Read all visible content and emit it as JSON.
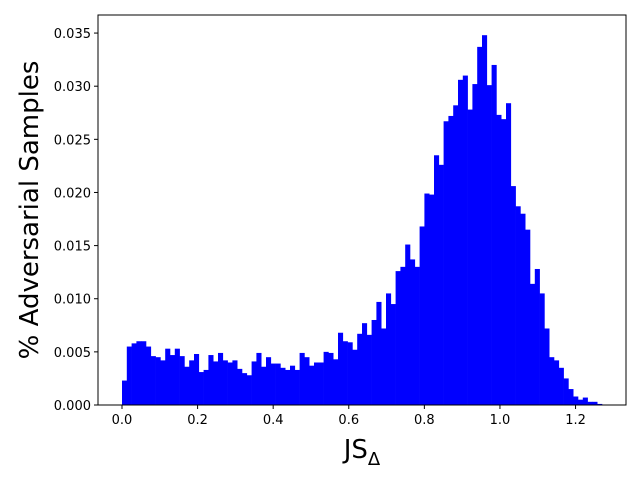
{
  "chart_data": {
    "type": "histogram",
    "x_label": "JS",
    "x_label_subscript": "Δ",
    "y_label": "% Adversarial Samples",
    "color": "#0000ff",
    "bins": [
      0,
      0.0127,
      0.0254,
      0.0381,
      0.0508,
      0.0635,
      0.0762,
      0.0889,
      0.1016,
      0.1143,
      0.127,
      0.1397,
      0.1524,
      0.1651,
      0.1778,
      0.1905,
      0.2032,
      0.2159,
      0.2286,
      0.2413,
      0.254,
      0.2667,
      0.2794,
      0.2921,
      0.3048,
      0.3175,
      0.3302,
      0.3429,
      0.3556,
      0.3683,
      0.381,
      0.3937,
      0.4064,
      0.4191,
      0.4318,
      0.4445,
      0.4572,
      0.4699,
      0.4826,
      0.4953,
      0.508,
      0.5207,
      0.5334,
      0.5461,
      0.5588,
      0.5715,
      0.5842,
      0.5969,
      0.6096,
      0.6223,
      0.635,
      0.6477,
      0.6604,
      0.6731,
      0.6858,
      0.6985,
      0.7112,
      0.7239,
      0.7366,
      0.7493,
      0.762,
      0.7747,
      0.7874,
      0.8001,
      0.8128,
      0.8255,
      0.8382,
      0.8509,
      0.8636,
      0.8763,
      0.889,
      0.9017,
      0.9144,
      0.9271,
      0.9398,
      0.9525,
      0.9652,
      0.9779,
      0.9906,
      1.0033,
      1.016,
      1.0287,
      1.0414,
      1.0541,
      1.0668,
      1.0795,
      1.0922,
      1.1049,
      1.1176,
      1.1303,
      1.143,
      1.1557,
      1.1684,
      1.1811,
      1.1938,
      1.2065,
      1.2192,
      1.2319,
      1.2446,
      1.2573,
      1.27
    ],
    "values": [
      0.0023,
      0.0055,
      0.0058,
      0.006,
      0.006,
      0.0055,
      0.0046,
      0.0045,
      0.0042,
      0.0053,
      0.0047,
      0.0053,
      0.0046,
      0.0036,
      0.0042,
      0.0048,
      0.0031,
      0.0033,
      0.0047,
      0.0041,
      0.0049,
      0.0042,
      0.004,
      0.0042,
      0.0034,
      0.003,
      0.0028,
      0.0041,
      0.0049,
      0.0036,
      0.0045,
      0.0039,
      0.0039,
      0.0035,
      0.0033,
      0.0037,
      0.0033,
      0.0049,
      0.0045,
      0.0037,
      0.004,
      0.004,
      0.005,
      0.0049,
      0.0043,
      0.0068,
      0.006,
      0.0059,
      0.0052,
      0.0067,
      0.0077,
      0.0066,
      0.008,
      0.0097,
      0.0072,
      0.0105,
      0.0095,
      0.0126,
      0.013,
      0.0151,
      0.0137,
      0.013,
      0.0168,
      0.0199,
      0.0198,
      0.0235,
      0.0226,
      0.0267,
      0.0272,
      0.0282,
      0.0306,
      0.031,
      0.0278,
      0.0302,
      0.0337,
      0.0348,
      0.0301,
      0.032,
      0.0273,
      0.0269,
      0.0284,
      0.0206,
      0.0187,
      0.018,
      0.0165,
      0.0114,
      0.0128,
      0.0105,
      0.0072,
      0.0045,
      0.0042,
      0.0035,
      0.0025,
      0.0015,
      0.0008,
      0.0005,
      0.0007,
      0.0003,
      0.0003,
      0.0001
    ],
    "xlim": [
      -0.0635,
      1.3335
    ],
    "ylim": [
      0,
      0.0367
    ],
    "xticks": [
      {
        "value": 0,
        "label": "0.0"
      },
      0.2,
      0.4,
      0.6,
      0.8,
      {
        "value": 1,
        "label": "1.0"
      },
      1.2
    ],
    "yticks": [
      {
        "value": 0,
        "label": "0.000"
      },
      0.005,
      {
        "value": 0.01,
        "label": "0.010"
      },
      0.015,
      {
        "value": 0.02,
        "label": "0.020"
      },
      0.025,
      {
        "value": 0.03,
        "label": "0.030"
      },
      0.035
    ]
  }
}
